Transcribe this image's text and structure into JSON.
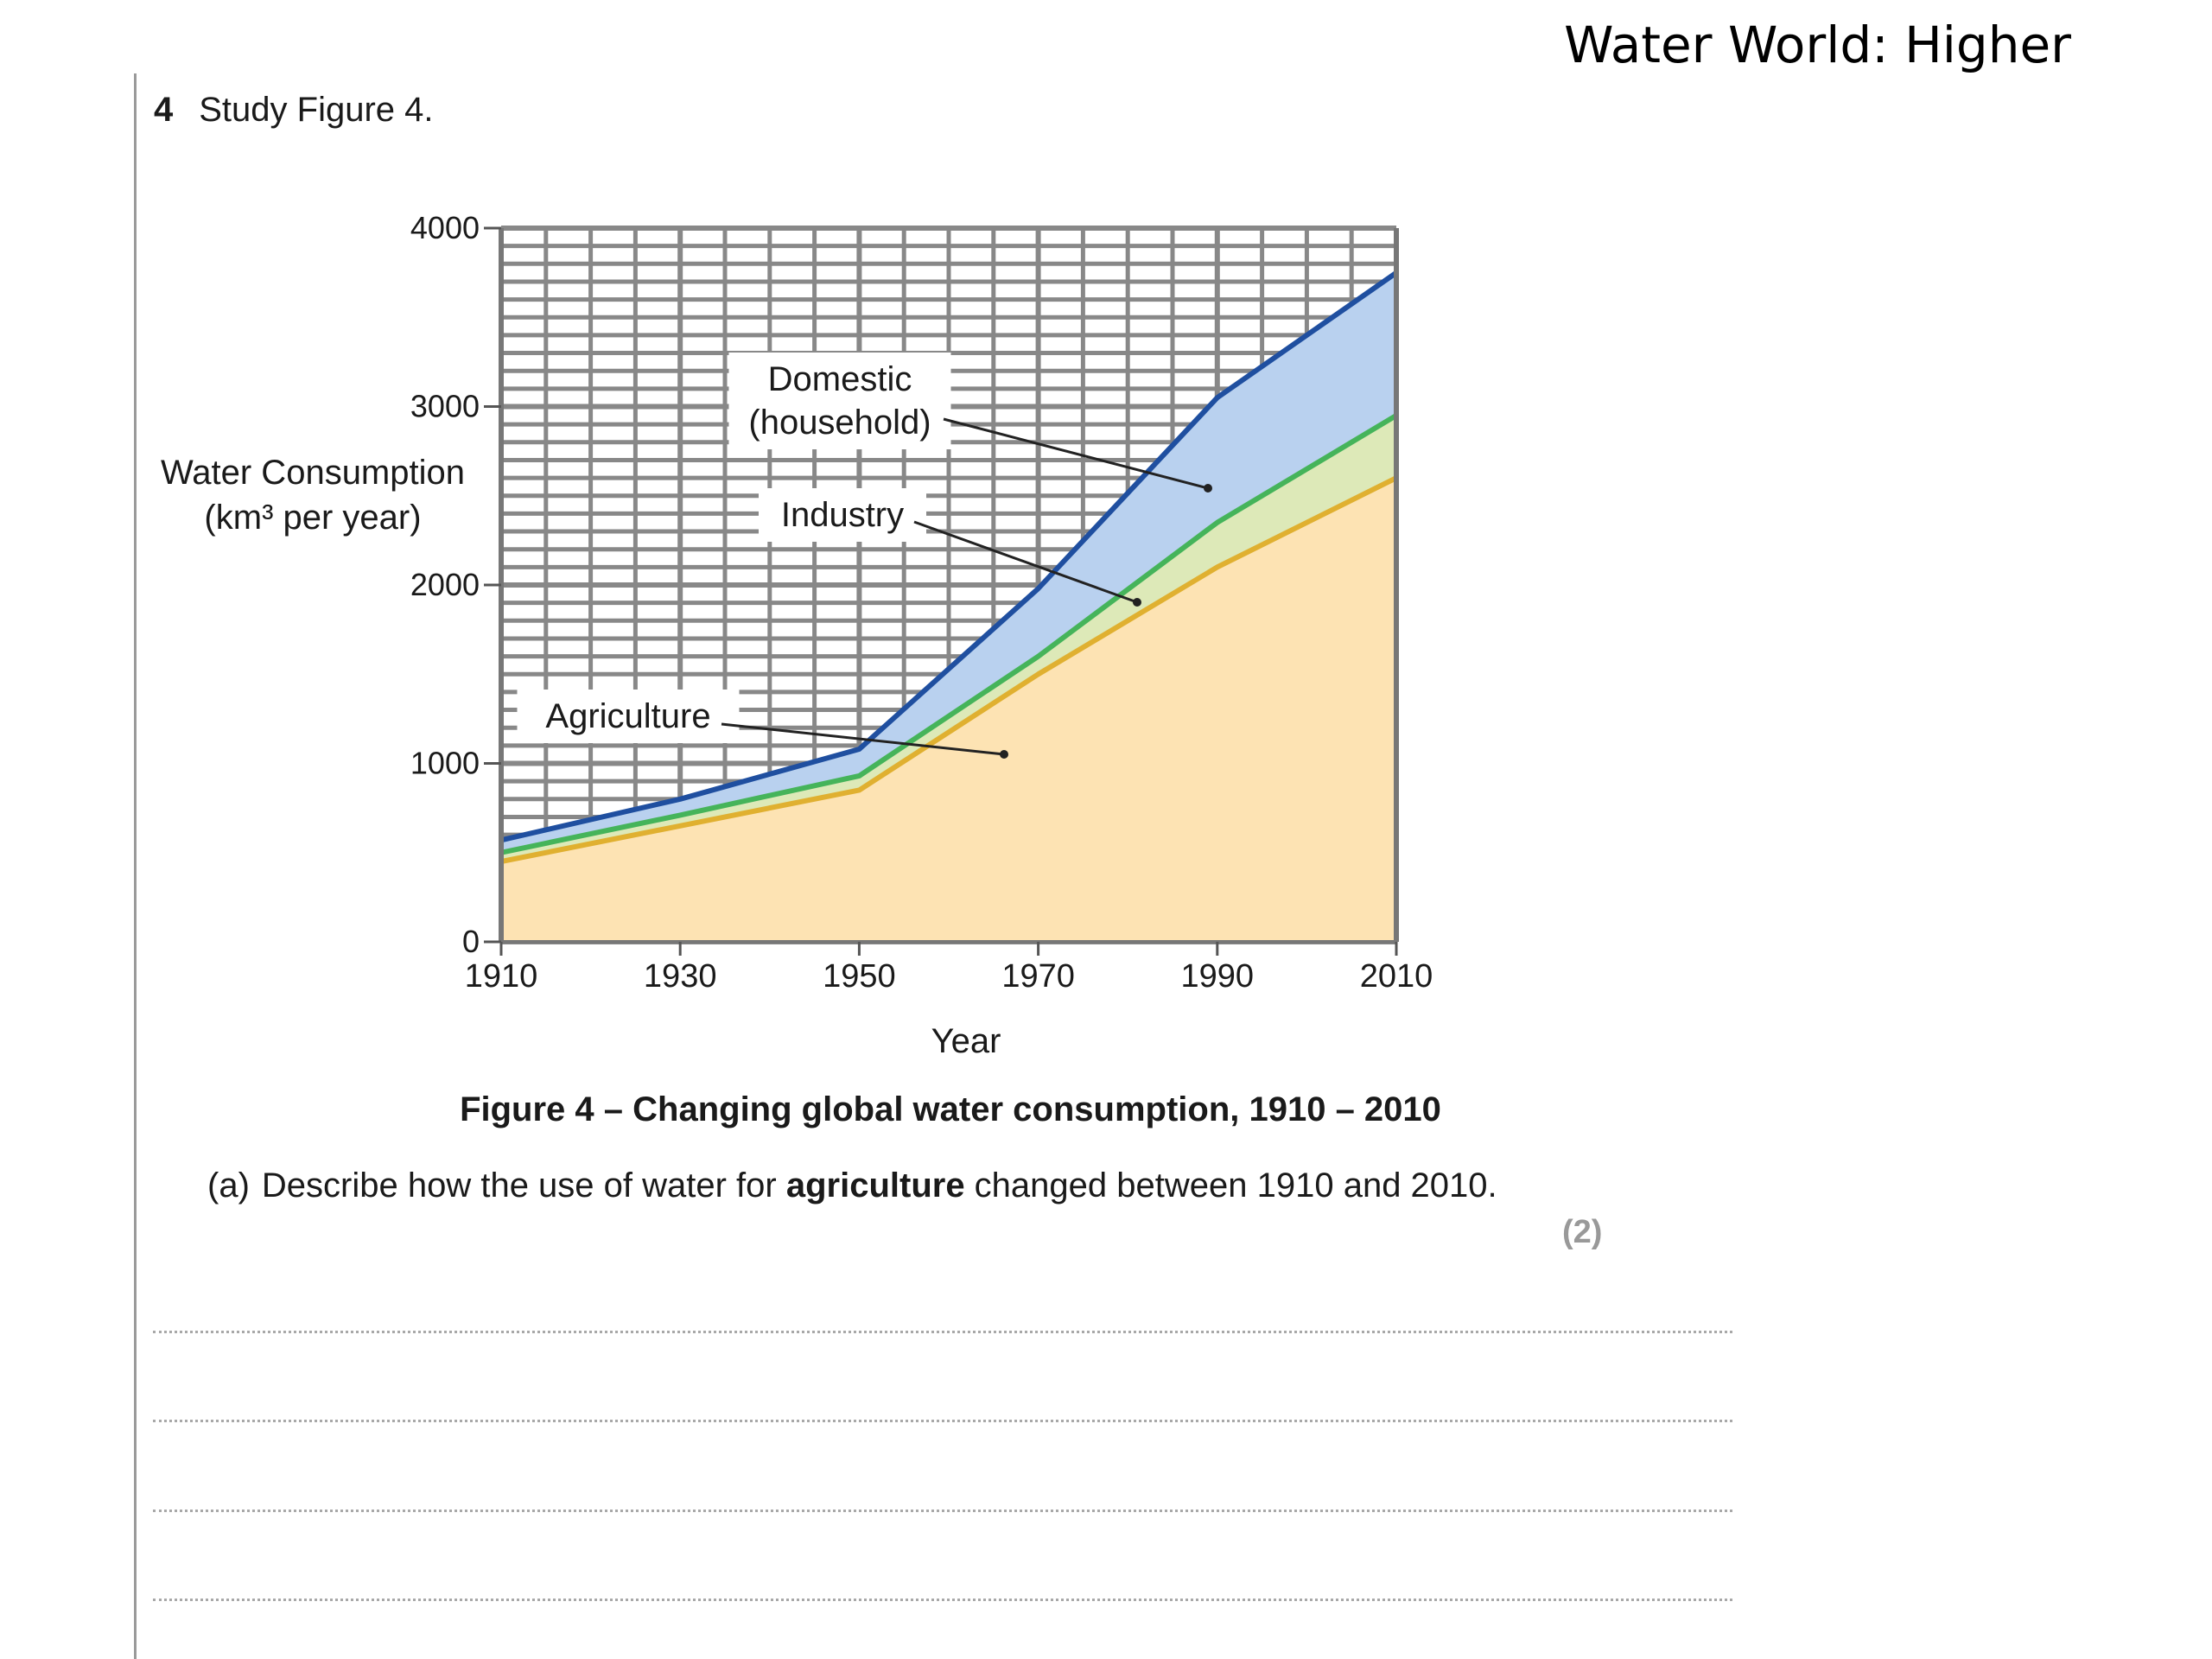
{
  "header": {
    "title": "Water World: Higher"
  },
  "question": {
    "number": "4",
    "instruction": "Study Figure 4.",
    "caption": "Figure 4 – Changing global water consumption, 1910 – 2010",
    "subquestion": {
      "label": "(a)",
      "text_before": "Describe how the use of water for ",
      "text_bold": "agriculture",
      "text_after": " changed between 1910 and 2010.",
      "marks": "(2)"
    }
  },
  "chart_data": {
    "type": "area",
    "stacked": true,
    "x": [
      1910,
      1930,
      1950,
      1970,
      1990,
      2010
    ],
    "series": [
      {
        "name": "Agriculture",
        "values": [
          450,
          650,
          850,
          1500,
          2100,
          2600
        ],
        "color": "#e0b030"
      },
      {
        "name": "Industry",
        "values": [
          50,
          60,
          80,
          100,
          250,
          350
        ],
        "color": "#45b45a"
      },
      {
        "name": "Domestic (household)",
        "values": [
          70,
          90,
          150,
          380,
          700,
          800
        ],
        "color": "#1f4fa0"
      }
    ],
    "series_labels": [
      "Domestic",
      "(household)",
      "Industry",
      "Agriculture"
    ],
    "xlabel": "Year",
    "ylabel_line1": "Water Consumption",
    "ylabel_line2": "(km³ per year)",
    "xlim": [
      1910,
      2010
    ],
    "ylim": [
      0,
      4000
    ],
    "x_ticks": [
      "1910",
      "1930",
      "1950",
      "1970",
      "1990",
      "2010"
    ],
    "y_ticks": [
      "4000",
      "3000",
      "2000",
      "1000",
      "0"
    ],
    "fill_colors": {
      "agriculture": "#fde3b3",
      "industry": "#dde9b8",
      "domestic": "#b9d1ef"
    },
    "grid": true,
    "legend": "none"
  }
}
